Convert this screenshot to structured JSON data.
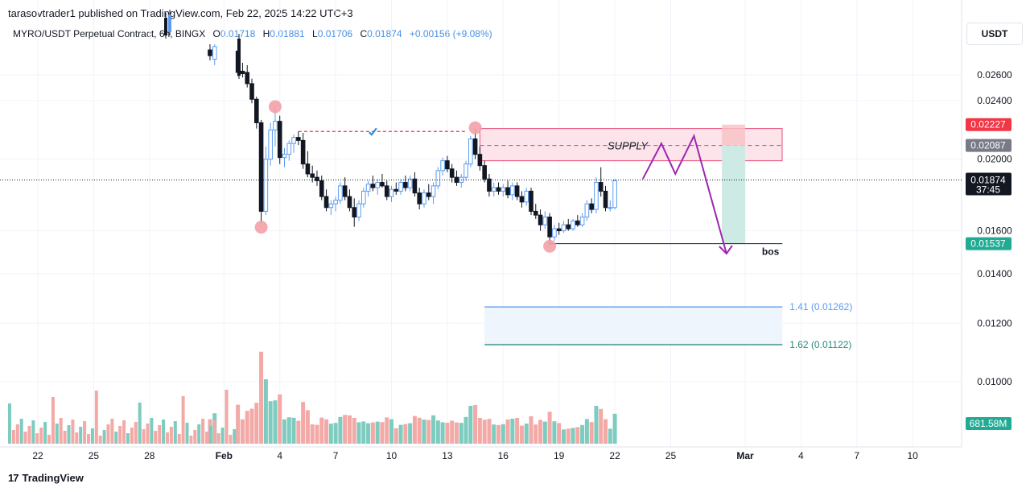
{
  "header": {
    "published": "tarasovtrader1 published on TradingView.com, Feb 22, 2025 14:22 UTC+3",
    "symbol": "MYRO/USDT Perpetual Contract, 6h, BINGX",
    "open_label": "O",
    "open_value": "0.01718",
    "high_label": "H",
    "high_value": "0.01881",
    "low_label": "L",
    "low_value": "0.01706",
    "close_label": "C",
    "close_value": "0.01874",
    "change": "+0.00156 (+9.08%)"
  },
  "currency_button": "USDT",
  "footer": {
    "logo_mark": "17",
    "logo_text": "TradingView"
  },
  "colors": {
    "up": "#5b9cf0",
    "down": "#131722",
    "vol_up": "#7ecbbf",
    "vol_down": "#f3a9a6",
    "supply_fill": "#fde3ea",
    "supply_border": "#e8507a",
    "projection": "#9c27b0",
    "fib_141": "#5b9cf0",
    "fib_162": "#2a8a79",
    "pivot_marker": "#f4a0a8",
    "badge_red": "#f23645",
    "badge_gray": "#787b86",
    "badge_black": "#131722",
    "badge_green": "#22ab94"
  },
  "chart_data": {
    "type": "candlestick",
    "y_axis": {
      "ticks": [
        "0.02600",
        "0.02400",
        "0.02000",
        "0.01600",
        "0.01400",
        "0.01200",
        "0.01000"
      ],
      "tick_values": [
        0.026,
        0.024,
        0.02,
        0.016,
        0.014,
        0.012,
        0.01
      ],
      "ylim": [
        0.009,
        0.0282
      ]
    },
    "x_axis": {
      "ticks": [
        "22",
        "25",
        "28",
        "Feb",
        "4",
        "7",
        "10",
        "13",
        "16",
        "19",
        "22",
        "25",
        "Mar",
        "4",
        "7",
        "10"
      ],
      "tick_dates": [
        "2025-01-22",
        "2025-01-25",
        "2025-01-28",
        "2025-02-01",
        "2025-02-04",
        "2025-02-07",
        "2025-02-10",
        "2025-02-13",
        "2025-02-16",
        "2025-02-19",
        "2025-02-22",
        "2025-02-25",
        "2025-03-01",
        "2025-03-04",
        "2025-03-07",
        "2025-03-10"
      ],
      "bold_ticks": [
        "Feb",
        "Mar"
      ]
    },
    "price_badges": [
      {
        "label": "0.02227",
        "value": 0.02227,
        "color": "red"
      },
      {
        "label": "0.02087",
        "value": 0.02087,
        "color": "gray"
      },
      {
        "label": "0.01874",
        "value": 0.01874,
        "color": "black",
        "sub": "37:45"
      },
      {
        "label": "0.01537",
        "value": 0.01537,
        "color": "green"
      },
      {
        "label": "681.58M",
        "value": null,
        "color": "green"
      }
    ],
    "last_price": 0.01874,
    "supply_zone": {
      "label": "SUPPLY",
      "top": 0.022,
      "bottom": 0.0199,
      "mid": 0.02087,
      "start": "2025-02-14T18:00",
      "end": "2025-03-01T00:00"
    },
    "resistance_line": {
      "value": 0.0218,
      "start": "2025-02-05T00:00",
      "end": "2025-02-14T00:00"
    },
    "bos_line": {
      "label": "bos",
      "value": 0.01537,
      "start": "2025-02-18T12:00",
      "end": "2025-03-03T00:00"
    },
    "fib_levels": [
      {
        "label": "1.41 (0.01262)",
        "value": 0.01262,
        "start": "2025-02-15T00:00",
        "end": "2025-03-03T00:00"
      },
      {
        "label": "1.62 (0.01122)",
        "value": 0.01122,
        "start": "2025-02-15T00:00",
        "end": "2025-03-03T00:00"
      }
    ],
    "projection_path": [
      [
        "2025-02-23T12:00",
        0.0188
      ],
      [
        "2025-02-24T12:00",
        0.021
      ],
      [
        "2025-02-25T06:00",
        0.0191
      ],
      [
        "2025-02-26T06:00",
        0.0215
      ],
      [
        "2025-02-28T00:00",
        0.0149
      ]
    ],
    "short_position": {
      "start": "2025-02-27T18:00",
      "end": "2025-03-01T00:00",
      "stop": 0.02227,
      "entry": 0.02087,
      "target": 0.01537
    },
    "pivot_markers": [
      {
        "date": "2025-02-03T00:00",
        "price": 0.01618
      },
      {
        "date": "2025-02-03T18:00",
        "price": 0.02355
      },
      {
        "date": "2025-02-14T12:00",
        "price": 0.02205
      },
      {
        "date": "2025-02-18T12:00",
        "price": 0.01525
      }
    ],
    "candles": [
      {
        "t": "2025-01-31T06:00",
        "o": 0.0281,
        "h": 0.0286,
        "l": 0.0272,
        "c": 0.0276
      },
      {
        "t": "2025-01-31T12:00",
        "o": 0.0273,
        "h": 0.0286,
        "l": 0.0268,
        "c": 0.0284
      },
      {
        "t": "2025-02-01T18:00",
        "o": 0.028,
        "h": 0.0283,
        "l": 0.0259,
        "c": 0.0262
      },
      {
        "t": "2025-02-02T00:00",
        "o": 0.0263,
        "h": 0.027,
        "l": 0.0258,
        "c": 0.0261
      },
      {
        "t": "2025-02-02T06:00",
        "o": 0.0262,
        "h": 0.0268,
        "l": 0.025,
        "c": 0.0253
      },
      {
        "t": "2025-02-02T12:00",
        "o": 0.0253,
        "h": 0.0257,
        "l": 0.0238,
        "c": 0.0241
      },
      {
        "t": "2025-02-02T18:00",
        "o": 0.0241,
        "h": 0.0243,
        "l": 0.022,
        "c": 0.0224
      },
      {
        "t": "2025-02-03T00:00",
        "o": 0.0224,
        "h": 0.0226,
        "l": 0.0164,
        "c": 0.017
      },
      {
        "t": "2025-02-03T06:00",
        "o": 0.017,
        "h": 0.0208,
        "l": 0.0168,
        "c": 0.02
      },
      {
        "t": "2025-02-03T12:00",
        "o": 0.02,
        "h": 0.0224,
        "l": 0.0196,
        "c": 0.0219
      },
      {
        "t": "2025-02-03T18:00",
        "o": 0.0219,
        "h": 0.0236,
        "l": 0.0208,
        "c": 0.0225
      },
      {
        "t": "2025-02-04T00:00",
        "o": 0.0225,
        "h": 0.0229,
        "l": 0.0197,
        "c": 0.0201
      },
      {
        "t": "2025-02-04T06:00",
        "o": 0.0201,
        "h": 0.0207,
        "l": 0.0195,
        "c": 0.0203
      },
      {
        "t": "2025-02-04T12:00",
        "o": 0.0203,
        "h": 0.0212,
        "l": 0.0199,
        "c": 0.021
      },
      {
        "t": "2025-02-04T18:00",
        "o": 0.021,
        "h": 0.0216,
        "l": 0.0204,
        "c": 0.0214
      },
      {
        "t": "2025-02-05T00:00",
        "o": 0.0214,
        "h": 0.0218,
        "l": 0.0209,
        "c": 0.0212
      },
      {
        "t": "2025-02-05T06:00",
        "o": 0.0212,
        "h": 0.0217,
        "l": 0.0194,
        "c": 0.0197
      },
      {
        "t": "2025-02-05T12:00",
        "o": 0.0197,
        "h": 0.0205,
        "l": 0.0189,
        "c": 0.0191
      },
      {
        "t": "2025-02-05T18:00",
        "o": 0.0191,
        "h": 0.0196,
        "l": 0.0186,
        "c": 0.0189
      },
      {
        "t": "2025-02-06T00:00",
        "o": 0.0189,
        "h": 0.0193,
        "l": 0.0184,
        "c": 0.0187
      },
      {
        "t": "2025-02-06T06:00",
        "o": 0.0187,
        "h": 0.019,
        "l": 0.0176,
        "c": 0.0178
      },
      {
        "t": "2025-02-06T12:00",
        "o": 0.0178,
        "h": 0.0182,
        "l": 0.017,
        "c": 0.0172
      },
      {
        "t": "2025-02-06T18:00",
        "o": 0.0172,
        "h": 0.0176,
        "l": 0.0168,
        "c": 0.0174
      },
      {
        "t": "2025-02-07T00:00",
        "o": 0.0174,
        "h": 0.0178,
        "l": 0.017,
        "c": 0.0176
      },
      {
        "t": "2025-02-07T06:00",
        "o": 0.0176,
        "h": 0.0186,
        "l": 0.0174,
        "c": 0.0184
      },
      {
        "t": "2025-02-07T12:00",
        "o": 0.0184,
        "h": 0.0189,
        "l": 0.0176,
        "c": 0.0178
      },
      {
        "t": "2025-02-07T18:00",
        "o": 0.0178,
        "h": 0.0182,
        "l": 0.017,
        "c": 0.0172
      },
      {
        "t": "2025-02-08T00:00",
        "o": 0.0172,
        "h": 0.0177,
        "l": 0.0162,
        "c": 0.0167
      },
      {
        "t": "2025-02-08T06:00",
        "o": 0.0167,
        "h": 0.0176,
        "l": 0.0165,
        "c": 0.0174
      },
      {
        "t": "2025-02-08T12:00",
        "o": 0.0174,
        "h": 0.0183,
        "l": 0.0172,
        "c": 0.0181
      },
      {
        "t": "2025-02-08T18:00",
        "o": 0.0181,
        "h": 0.0187,
        "l": 0.0178,
        "c": 0.0185
      },
      {
        "t": "2025-02-09T00:00",
        "o": 0.0185,
        "h": 0.019,
        "l": 0.0181,
        "c": 0.0183
      },
      {
        "t": "2025-02-09T06:00",
        "o": 0.0183,
        "h": 0.0188,
        "l": 0.0179,
        "c": 0.0186
      },
      {
        "t": "2025-02-09T12:00",
        "o": 0.0186,
        "h": 0.0191,
        "l": 0.0183,
        "c": 0.0184
      },
      {
        "t": "2025-02-09T18:00",
        "o": 0.0184,
        "h": 0.0187,
        "l": 0.0176,
        "c": 0.0178
      },
      {
        "t": "2025-02-10T00:00",
        "o": 0.0178,
        "h": 0.0184,
        "l": 0.0175,
        "c": 0.0182
      },
      {
        "t": "2025-02-10T06:00",
        "o": 0.0182,
        "h": 0.0186,
        "l": 0.0179,
        "c": 0.0181
      },
      {
        "t": "2025-02-10T12:00",
        "o": 0.0181,
        "h": 0.0188,
        "l": 0.0179,
        "c": 0.0186
      },
      {
        "t": "2025-02-10T18:00",
        "o": 0.0186,
        "h": 0.019,
        "l": 0.0181,
        "c": 0.0183
      },
      {
        "t": "2025-02-11T00:00",
        "o": 0.0183,
        "h": 0.019,
        "l": 0.0181,
        "c": 0.0188
      },
      {
        "t": "2025-02-11T06:00",
        "o": 0.0188,
        "h": 0.0192,
        "l": 0.0178,
        "c": 0.018
      },
      {
        "t": "2025-02-11T12:00",
        "o": 0.018,
        "h": 0.0183,
        "l": 0.0171,
        "c": 0.0174
      },
      {
        "t": "2025-02-11T18:00",
        "o": 0.0174,
        "h": 0.0182,
        "l": 0.0172,
        "c": 0.018
      },
      {
        "t": "2025-02-12T00:00",
        "o": 0.018,
        "h": 0.0185,
        "l": 0.0176,
        "c": 0.0178
      },
      {
        "t": "2025-02-12T06:00",
        "o": 0.0178,
        "h": 0.0186,
        "l": 0.0174,
        "c": 0.0184
      },
      {
        "t": "2025-02-12T12:00",
        "o": 0.0184,
        "h": 0.0195,
        "l": 0.0182,
        "c": 0.0193
      },
      {
        "t": "2025-02-12T18:00",
        "o": 0.0193,
        "h": 0.0201,
        "l": 0.019,
        "c": 0.0199
      },
      {
        "t": "2025-02-13T00:00",
        "o": 0.0199,
        "h": 0.0202,
        "l": 0.0192,
        "c": 0.0194
      },
      {
        "t": "2025-02-13T06:00",
        "o": 0.0194,
        "h": 0.0197,
        "l": 0.0186,
        "c": 0.0189
      },
      {
        "t": "2025-02-13T12:00",
        "o": 0.0189,
        "h": 0.0193,
        "l": 0.0184,
        "c": 0.0186
      },
      {
        "t": "2025-02-13T18:00",
        "o": 0.0186,
        "h": 0.0191,
        "l": 0.0183,
        "c": 0.0189
      },
      {
        "t": "2025-02-14T00:00",
        "o": 0.0189,
        "h": 0.0199,
        "l": 0.0187,
        "c": 0.0197
      },
      {
        "t": "2025-02-14T06:00",
        "o": 0.0197,
        "h": 0.0215,
        "l": 0.0195,
        "c": 0.0213
      },
      {
        "t": "2025-02-14T12:00",
        "o": 0.0213,
        "h": 0.022,
        "l": 0.02,
        "c": 0.0203
      },
      {
        "t": "2025-02-14T18:00",
        "o": 0.0203,
        "h": 0.0208,
        "l": 0.0193,
        "c": 0.0196
      },
      {
        "t": "2025-02-15T00:00",
        "o": 0.0196,
        "h": 0.0199,
        "l": 0.0186,
        "c": 0.0188
      },
      {
        "t": "2025-02-15T06:00",
        "o": 0.0188,
        "h": 0.0191,
        "l": 0.0178,
        "c": 0.0181
      },
      {
        "t": "2025-02-15T12:00",
        "o": 0.0181,
        "h": 0.0186,
        "l": 0.0178,
        "c": 0.0183
      },
      {
        "t": "2025-02-15T18:00",
        "o": 0.0183,
        "h": 0.0186,
        "l": 0.0179,
        "c": 0.0181
      },
      {
        "t": "2025-02-16T00:00",
        "o": 0.0181,
        "h": 0.0185,
        "l": 0.0178,
        "c": 0.0183
      },
      {
        "t": "2025-02-16T06:00",
        "o": 0.0183,
        "h": 0.0187,
        "l": 0.0177,
        "c": 0.0179
      },
      {
        "t": "2025-02-16T12:00",
        "o": 0.0179,
        "h": 0.0186,
        "l": 0.0176,
        "c": 0.0184
      },
      {
        "t": "2025-02-16T18:00",
        "o": 0.0184,
        "h": 0.0186,
        "l": 0.0176,
        "c": 0.0178
      },
      {
        "t": "2025-02-17T00:00",
        "o": 0.0178,
        "h": 0.0181,
        "l": 0.0172,
        "c": 0.0175
      },
      {
        "t": "2025-02-17T06:00",
        "o": 0.0175,
        "h": 0.0183,
        "l": 0.0173,
        "c": 0.0181
      },
      {
        "t": "2025-02-17T12:00",
        "o": 0.0181,
        "h": 0.0183,
        "l": 0.0168,
        "c": 0.017
      },
      {
        "t": "2025-02-17T18:00",
        "o": 0.017,
        "h": 0.0174,
        "l": 0.0166,
        "c": 0.0168
      },
      {
        "t": "2025-02-18T00:00",
        "o": 0.0168,
        "h": 0.0171,
        "l": 0.016,
        "c": 0.0163
      },
      {
        "t": "2025-02-18T06:00",
        "o": 0.0163,
        "h": 0.017,
        "l": 0.0161,
        "c": 0.0167
      },
      {
        "t": "2025-02-18T12:00",
        "o": 0.0167,
        "h": 0.0169,
        "l": 0.0153,
        "c": 0.0157
      },
      {
        "t": "2025-02-18T18:00",
        "o": 0.0157,
        "h": 0.0163,
        "l": 0.0155,
        "c": 0.0161
      },
      {
        "t": "2025-02-19T00:00",
        "o": 0.0161,
        "h": 0.0164,
        "l": 0.0158,
        "c": 0.016
      },
      {
        "t": "2025-02-19T06:00",
        "o": 0.016,
        "h": 0.0165,
        "l": 0.0159,
        "c": 0.0163
      },
      {
        "t": "2025-02-19T12:00",
        "o": 0.0163,
        "h": 0.0166,
        "l": 0.016,
        "c": 0.0161
      },
      {
        "t": "2025-02-19T18:00",
        "o": 0.0161,
        "h": 0.0166,
        "l": 0.016,
        "c": 0.0165
      },
      {
        "t": "2025-02-20T00:00",
        "o": 0.0165,
        "h": 0.0168,
        "l": 0.0162,
        "c": 0.0163
      },
      {
        "t": "2025-02-20T06:00",
        "o": 0.0163,
        "h": 0.0169,
        "l": 0.0162,
        "c": 0.0167
      },
      {
        "t": "2025-02-20T12:00",
        "o": 0.0167,
        "h": 0.0176,
        "l": 0.0165,
        "c": 0.0174
      },
      {
        "t": "2025-02-20T18:00",
        "o": 0.0174,
        "h": 0.0177,
        "l": 0.0169,
        "c": 0.0171
      },
      {
        "t": "2025-02-21T00:00",
        "o": 0.0171,
        "h": 0.0189,
        "l": 0.0169,
        "c": 0.0186
      },
      {
        "t": "2025-02-21T06:00",
        "o": 0.0186,
        "h": 0.0195,
        "l": 0.0178,
        "c": 0.0181
      },
      {
        "t": "2025-02-21T12:00",
        "o": 0.0181,
        "h": 0.0184,
        "l": 0.017,
        "c": 0.0172
      },
      {
        "t": "2025-02-21T18:00",
        "o": 0.0172,
        "h": 0.0176,
        "l": 0.017,
        "c": 0.0172
      },
      {
        "t": "2025-02-22T00:00",
        "o": 0.0172,
        "h": 0.0188,
        "l": 0.0171,
        "c": 0.0187
      }
    ]
  }
}
